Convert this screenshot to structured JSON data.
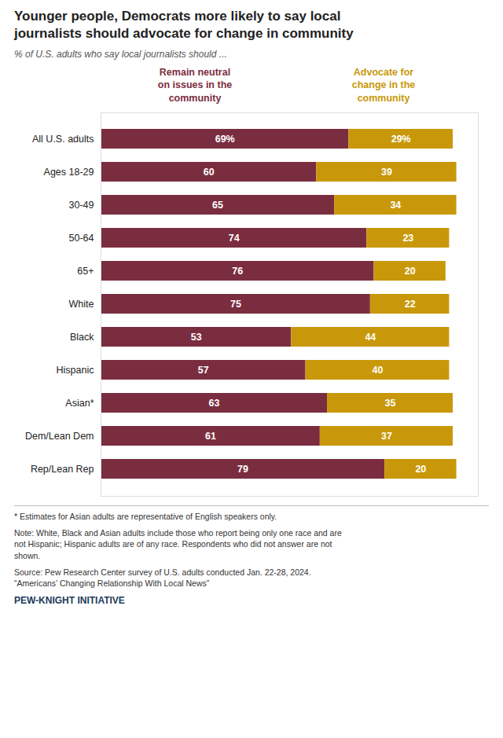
{
  "chart_data": {
    "type": "bar",
    "orientation": "horizontal",
    "stacked": true,
    "data_labels": true,
    "tick_labels": "y",
    "grid": false,
    "legend": "top",
    "title": "Younger people, Democrats more likely to say local\njournalists should advocate for change in community",
    "subtitle": "% of U.S. adults who say local journalists should ...",
    "categories": [
      "All U.S. adults",
      "Ages 18-29",
      "30-49",
      "50-64",
      "65+",
      "White",
      "Black",
      "Hispanic",
      "Asian*",
      "Dem/Lean Dem",
      "Rep/Lean Rep"
    ],
    "series": [
      {
        "name": "Remain neutral\non issues in the\ncommunity",
        "color": "#7B2D40",
        "values": [
          69,
          60,
          65,
          74,
          76,
          75,
          53,
          57,
          63,
          61,
          79
        ],
        "value_labels": [
          "69%",
          "60",
          "65",
          "74",
          "76",
          "75",
          "53",
          "57",
          "63",
          "61",
          "79"
        ]
      },
      {
        "name": "Advocate for\nchange in the\ncommunity",
        "color": "#C8980A",
        "values": [
          29,
          39,
          34,
          23,
          20,
          22,
          44,
          40,
          35,
          37,
          20
        ],
        "value_labels": [
          "29%",
          "39",
          "34",
          "23",
          "20",
          "22",
          "44",
          "40",
          "35",
          "37",
          "20"
        ]
      }
    ],
    "xlim": [
      0,
      105
    ],
    "xticks": [],
    "annotations": [
      "* Estimates for Asian adults are representative of English speakers only.",
      "Note: White, Black and Asian adults include those who report being only one race and are\nnot Hispanic; Hispanic adults are of any race. Respondents who did not answer are not\nshown.",
      "Source: Pew Research Center survey of U.S. adults conducted Jan. 22-28, 2024.\n“Americans’ Changing Relationship With Local News”",
      "PEW-KNIGHT INITIATIVE"
    ]
  }
}
